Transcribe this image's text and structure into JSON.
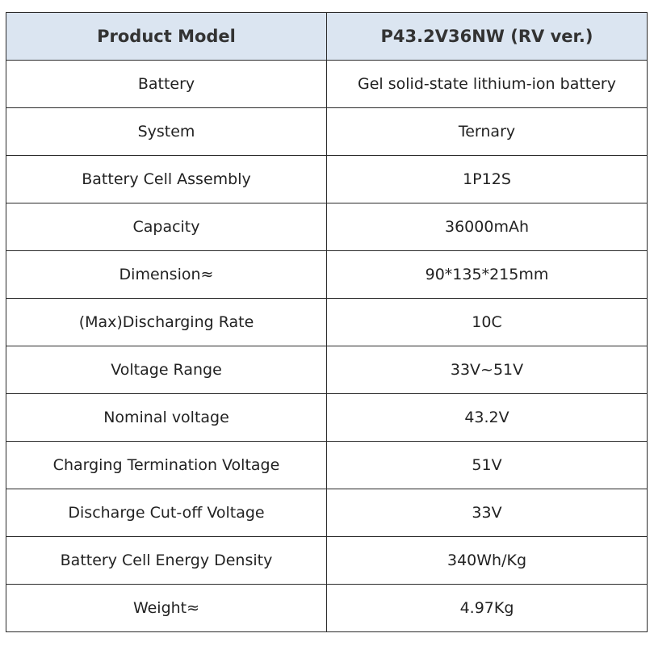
{
  "header": {
    "label": "Product Model",
    "value": "P43.2V36NW (RV ver.)"
  },
  "rows": [
    {
      "label": "Battery",
      "value": "Gel solid-state lithium-ion battery"
    },
    {
      "label": "System",
      "value": "Ternary"
    },
    {
      "label": "Battery Cell Assembly",
      "value": "1P12S"
    },
    {
      "label": "Capacity",
      "value": "36000mAh"
    },
    {
      "label": "Dimension≈",
      "value": "90*135*215mm"
    },
    {
      "label": "(Max)Discharging Rate",
      "value": "10C"
    },
    {
      "label": "Voltage Range",
      "value": "33V~51V"
    },
    {
      "label": "Nominal voltage",
      "value": "43.2V"
    },
    {
      "label": "Charging Termination Voltage",
      "value": "51V"
    },
    {
      "label": "Discharge Cut-off Voltage",
      "value": "33V"
    },
    {
      "label": "Battery Cell Energy Density",
      "value": "340Wh/Kg"
    },
    {
      "label": "Weight≈",
      "value": "4.97Kg"
    }
  ],
  "colors": {
    "header_background": "#dbe5f1",
    "border": "#2b2b2b",
    "text": "#222222"
  }
}
